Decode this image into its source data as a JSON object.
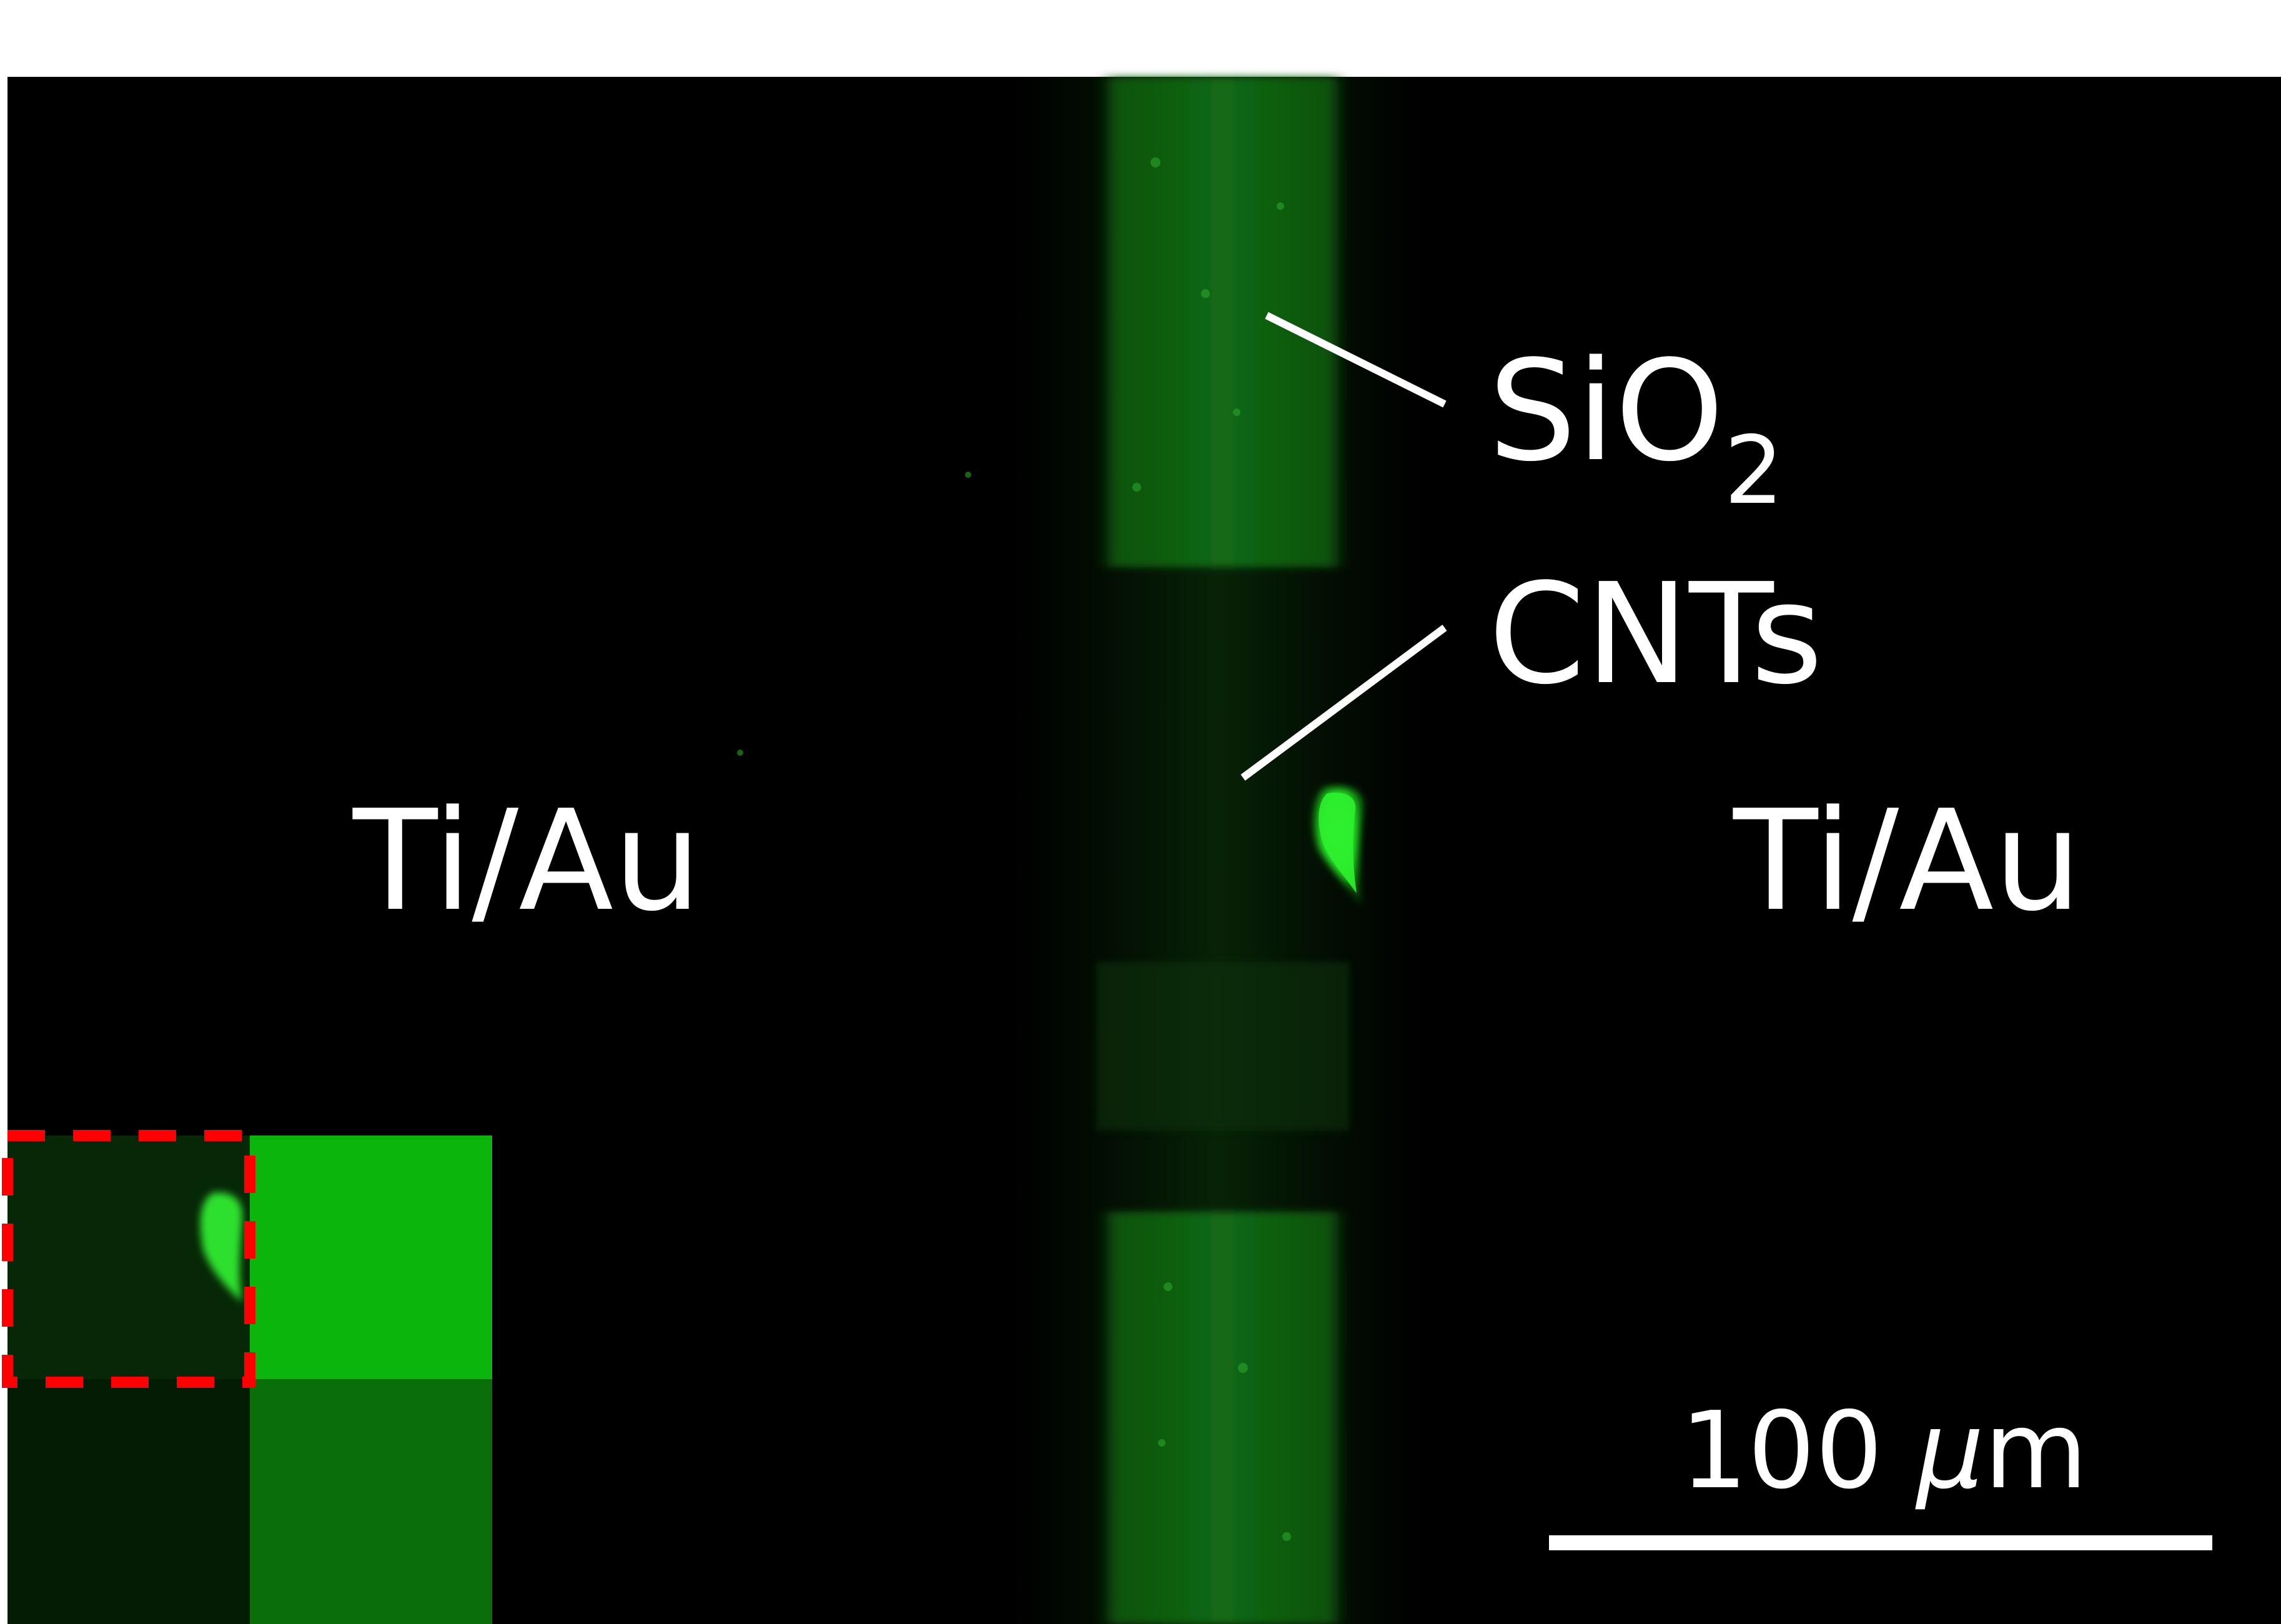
{
  "labels": {
    "electrode_left": "Ti/Au",
    "electrode_right": "Ti/Au",
    "oxide_main": "SiO",
    "oxide_sub": "2",
    "nanotubes": "CNTs",
    "scale_value": "100 ",
    "scale_mu": "μ",
    "scale_unit": "m"
  },
  "colors": {
    "background": "#000000",
    "fluorescence": "#1fd81f",
    "annotation": "#ffffff",
    "inset_outline": "#ff0000"
  }
}
